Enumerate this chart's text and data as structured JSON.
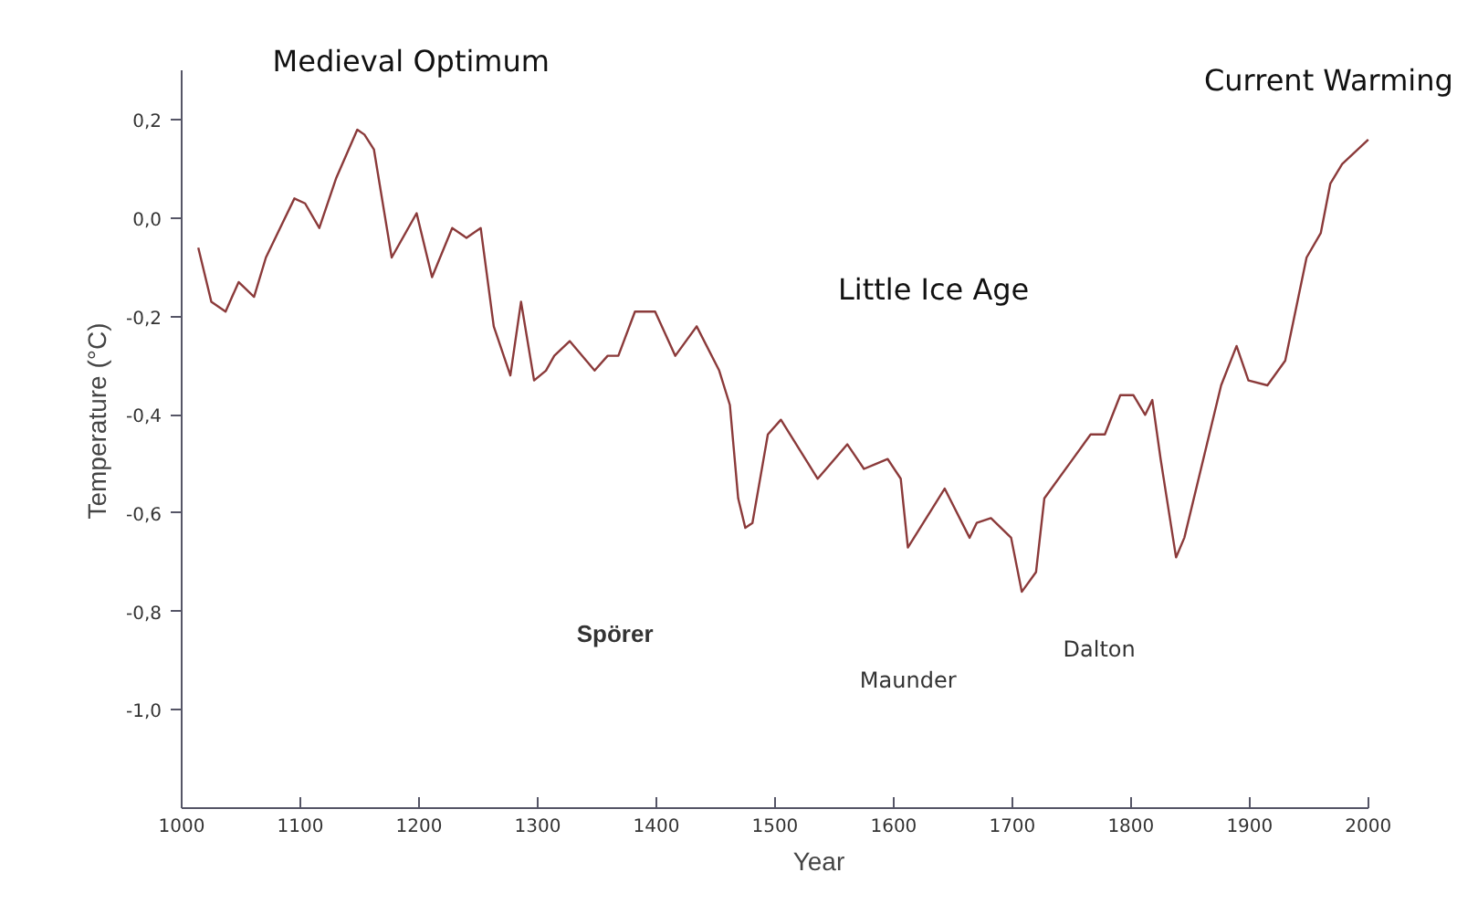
{
  "chart_data": {
    "type": "line",
    "xlabel": "Year",
    "ylabel": "Temperature (°C)",
    "x": [
      1014,
      1025,
      1037,
      1048,
      1061,
      1071,
      1081,
      1095,
      1104,
      1116,
      1130,
      1148,
      1154,
      1162,
      1177,
      1198,
      1211,
      1228,
      1240,
      1252,
      1263,
      1277,
      1286,
      1297,
      1307,
      1314,
      1327,
      1348,
      1359,
      1368,
      1382,
      1399,
      1416,
      1434,
      1453,
      1462,
      1469,
      1475,
      1481,
      1494,
      1505,
      1536,
      1561,
      1575,
      1595,
      1606,
      1612,
      1643,
      1664,
      1670,
      1682,
      1699,
      1708,
      1720,
      1727,
      1748,
      1766,
      1778,
      1791,
      1802,
      1812,
      1818,
      1825,
      1838,
      1845,
      1876,
      1889,
      1899,
      1915,
      1930,
      1948,
      1960,
      1968,
      1978,
      2000
    ],
    "series": [
      {
        "color": "#8b3a3a",
        "values": [
          -0.06,
          -0.17,
          -0.19,
          -0.13,
          -0.16,
          -0.08,
          -0.03,
          0.04,
          0.03,
          -0.02,
          0.08,
          0.18,
          0.17,
          0.14,
          -0.08,
          0.01,
          -0.12,
          -0.02,
          -0.04,
          -0.02,
          -0.22,
          -0.32,
          -0.17,
          -0.33,
          -0.31,
          -0.28,
          -0.25,
          -0.31,
          -0.28,
          -0.28,
          -0.19,
          -0.19,
          -0.28,
          -0.22,
          -0.31,
          -0.38,
          -0.57,
          -0.63,
          -0.62,
          -0.44,
          -0.41,
          -0.53,
          -0.46,
          -0.51,
          -0.49,
          -0.53,
          -0.67,
          -0.55,
          -0.65,
          -0.62,
          -0.61,
          -0.65,
          -0.76,
          -0.72,
          -0.57,
          -0.5,
          -0.44,
          -0.44,
          -0.36,
          -0.36,
          -0.4,
          -0.37,
          -0.49,
          -0.69,
          -0.65,
          -0.34,
          -0.26,
          -0.33,
          -0.34,
          -0.29,
          -0.08,
          -0.03,
          0.07,
          0.11,
          0.16
        ]
      }
    ],
    "xlim": [
      1000,
      2000
    ],
    "ylim": [
      -1.2,
      0.3
    ],
    "xticks": [
      1000,
      1100,
      1200,
      1300,
      1400,
      1500,
      1600,
      1700,
      1800,
      1900,
      2000
    ],
    "yticks": [
      {
        "value": 0.2,
        "label": "0,2"
      },
      {
        "value": 0.0,
        "label": "0,0"
      },
      {
        "value": -0.2,
        "label": "-0,2"
      },
      {
        "value": -0.4,
        "label": "-0,4"
      },
      {
        "value": -0.6,
        "label": "-0,6"
      },
      {
        "value": -0.8,
        "label": "-0,8"
      },
      {
        "value": -1.0,
        "label": "-1,0"
      }
    ],
    "grid": false,
    "marker": "none",
    "line_style": "solid",
    "annotations": [
      "Medieval Optimum",
      "Little Ice Age",
      "Spörer",
      "Maunder",
      "Dalton",
      "Current Warming"
    ]
  }
}
